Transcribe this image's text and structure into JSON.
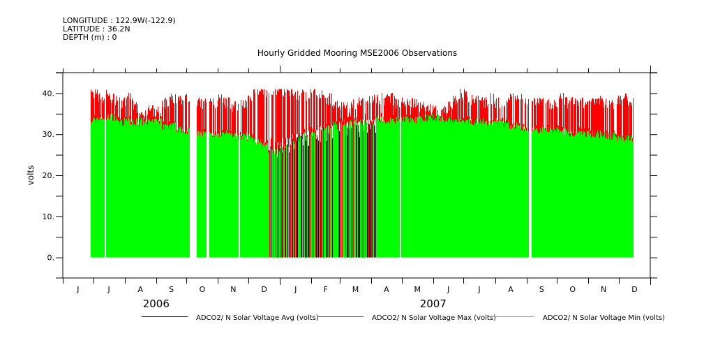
{
  "header": {
    "longitude": "LONGITUDE : 122.9W(-122.9)",
    "latitude": "LATITUDE : 36.2N",
    "depth": "DEPTH (m) : 0"
  },
  "chart_data": {
    "type": "bar",
    "title": "Hourly Gridded Mooring MSE2006 Observations",
    "ylabel": "volts",
    "xlabel": "",
    "ylim": [
      -5,
      45
    ],
    "yticks": [
      0,
      10,
      20,
      30,
      40
    ],
    "ytick_labels": [
      "0.",
      "10.",
      "20.",
      "30.",
      "40."
    ],
    "xlim": [
      "2006-06-01",
      "2008-01-01"
    ],
    "month_labels": [
      "J",
      "J",
      "A",
      "S",
      "O",
      "N",
      "D",
      "J",
      "F",
      "M",
      "A",
      "M",
      "J",
      "J",
      "A",
      "S",
      "O",
      "N",
      "D"
    ],
    "year_labels": [
      {
        "year": "2006",
        "month_index": 3
      },
      {
        "year": "2007",
        "month_index": 12
      }
    ],
    "grid": false,
    "legend_placement": "bottom",
    "data_start": "2006-06-28",
    "data_end": "2007-12-15",
    "resolution": "weekly approximation of hourly data",
    "gaps": [
      [
        "2006-07-12",
        "2006-07-13"
      ],
      [
        "2006-10-04",
        "2006-10-11"
      ],
      [
        "2006-10-20",
        "2006-10-23"
      ],
      [
        "2006-11-21",
        "2006-11-22"
      ],
      [
        "2007-04-29",
        "2007-04-30"
      ],
      [
        "2007-09-03",
        "2007-09-06"
      ]
    ],
    "intermittent_period": [
      "2006-12-21",
      "2007-04-06"
    ],
    "series": [
      {
        "name": "ADCO2/ N Solar Voltage Avg (volts)",
        "color": "#000000",
        "values": [
          34,
          34,
          34,
          34,
          33.5,
          33.5,
          33.5,
          33.5,
          33,
          33,
          33,
          33,
          32,
          32,
          32,
          31,
          31,
          31,
          31,
          31,
          30.5,
          30.5,
          30.5,
          30,
          30,
          29,
          28,
          29,
          30,
          30,
          31,
          31,
          32,
          32,
          32,
          33,
          33,
          33,
          33.5,
          33.5,
          34,
          34,
          34,
          34,
          34,
          34,
          34,
          34,
          34,
          34,
          34,
          34,
          33.5,
          33.5,
          33.5,
          33.5,
          33.5,
          33.5,
          33,
          33,
          32,
          32,
          32,
          32,
          31.5,
          31.5,
          31,
          31,
          31,
          31,
          30.5,
          30.5,
          30.5,
          30,
          30,
          30,
          30
        ]
      },
      {
        "name": "ADCO2/ N Solar Voltage Max (volts)",
        "color": "#ff0000",
        "values": [
          39,
          38,
          39,
          38,
          37,
          38,
          36,
          35,
          35,
          35,
          37,
          38,
          38,
          38,
          37,
          37,
          38,
          37,
          38,
          37,
          36,
          37,
          39,
          40,
          40,
          40,
          40,
          40,
          40,
          39,
          39,
          40,
          39,
          38,
          37,
          36,
          36,
          37,
          37,
          38,
          38,
          38,
          38,
          37,
          37,
          37,
          36,
          36,
          35,
          35,
          36,
          38,
          39,
          38,
          38,
          37,
          38,
          37,
          37,
          38,
          39,
          38,
          38,
          38,
          37,
          37,
          38,
          37,
          37,
          37,
          38,
          38,
          37,
          37,
          38,
          38,
          37
        ]
      },
      {
        "name": "ADCO2/ N Solar Voltage Min (volts)",
        "color": "#00ff00",
        "values": [
          33.5,
          34,
          34,
          34,
          33,
          33,
          33,
          33,
          33,
          33,
          32,
          32,
          31,
          31,
          31,
          30,
          30,
          30,
          30,
          30,
          29.5,
          29.5,
          29,
          28,
          27,
          26,
          26,
          27,
          28,
          29,
          30,
          30,
          31,
          32,
          32,
          33,
          33,
          33,
          33,
          33,
          33.5,
          33.5,
          33.5,
          33.5,
          33.5,
          33.5,
          33.5,
          34,
          34,
          33.5,
          33.5,
          33,
          33,
          33,
          33,
          33,
          33,
          33,
          32.5,
          32,
          31.5,
          31,
          31,
          31,
          31,
          31,
          30.5,
          30,
          30,
          30,
          30,
          30,
          29.5,
          29.5,
          29,
          29,
          29
        ]
      }
    ]
  }
}
